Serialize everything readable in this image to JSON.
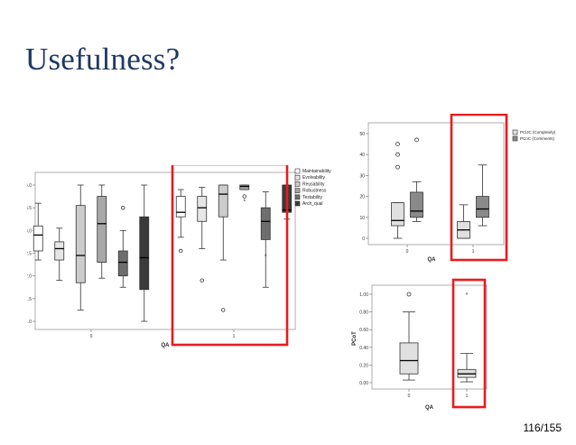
{
  "slide": {
    "title": "Usefulness?",
    "page_number": "116/155"
  },
  "chart_data": [
    {
      "type": "box",
      "xlabel": "QA",
      "ylabel": "",
      "categories": [
        "0",
        "1"
      ],
      "ylim": [
        1.0,
        4.0
      ],
      "yticks": [
        "1.0",
        "1.5",
        "2.0",
        "2.5",
        "3.0",
        "3.5",
        "4.0"
      ],
      "series": [
        {
          "name": "Maintainability",
          "color": "#ffffff",
          "boxes": [
            {
              "min": 2.35,
              "q1": 2.55,
              "median": 2.9,
              "q3": 3.1,
              "max": 3.6,
              "outliers": []
            },
            {
              "min": 2.85,
              "q1": 3.3,
              "median": 3.4,
              "q3": 3.75,
              "max": 3.9,
              "outliers": [
                {
                  "y": 2.55,
                  "marker": "o"
                }
              ]
            }
          ]
        },
        {
          "name": "Evolvability",
          "color": "#e6e6e6",
          "boxes": [
            {
              "min": 1.9,
              "q1": 2.35,
              "median": 2.6,
              "q3": 2.75,
              "max": 3.05,
              "outliers": []
            },
            {
              "min": 2.6,
              "q1": 3.2,
              "median": 3.5,
              "q3": 3.75,
              "max": 3.95,
              "outliers": [
                {
                  "y": 1.9,
                  "marker": "o"
                }
              ]
            }
          ]
        },
        {
          "name": "Reusability",
          "color": "#cccccc",
          "boxes": [
            {
              "min": 1.25,
              "q1": 1.85,
              "median": 2.45,
              "q3": 3.55,
              "max": 4.0,
              "outliers": []
            },
            {
              "min": 2.35,
              "q1": 3.3,
              "median": 3.8,
              "q3": 4.0,
              "max": 4.0,
              "outliers": [
                {
                  "y": 1.25,
                  "marker": "o"
                }
              ]
            }
          ]
        },
        {
          "name": "Robustness",
          "color": "#a8a8a8",
          "boxes": [
            {
              "min": 1.95,
              "q1": 2.3,
              "median": 3.15,
              "q3": 3.75,
              "max": 4.0,
              "outliers": []
            },
            {
              "min": 3.9,
              "q1": 3.9,
              "median": 3.97,
              "q3": 4.0,
              "max": 4.0,
              "outliers": [
                {
                  "y": 3.75,
                  "marker": "o"
                },
                {
                  "y": 3.65,
                  "marker": "*"
                }
              ]
            }
          ]
        },
        {
          "name": "Testability",
          "color": "#6e6e6e",
          "boxes": [
            {
              "min": 1.75,
              "q1": 2.0,
              "median": 2.3,
              "q3": 2.55,
              "max": 3.0,
              "outliers": [
                {
                  "y": 3.5,
                  "marker": "o"
                }
              ]
            },
            {
              "min": 1.75,
              "q1": 2.8,
              "median": 3.2,
              "q3": 3.5,
              "max": 3.85,
              "outliers": [
                {
                  "y": 2.45,
                  "marker": "*"
                }
              ]
            }
          ]
        },
        {
          "name": "Arch_qual",
          "color": "#3a3a3a",
          "boxes": [
            {
              "min": 1.0,
              "q1": 1.7,
              "median": 2.4,
              "q3": 3.3,
              "max": 4.0,
              "outliers": []
            },
            {
              "min": 3.25,
              "q1": 3.4,
              "median": 3.45,
              "q3": 4.0,
              "max": 4.0,
              "outliers": [
                {
                  "y": 1.0,
                  "marker": "*"
                }
              ]
            }
          ]
        }
      ]
    },
    {
      "type": "box",
      "xlabel": "QA",
      "ylabel": "",
      "categories": [
        "0",
        "1"
      ],
      "ylim": [
        0,
        50
      ],
      "yticks": [
        "0",
        "10",
        "20",
        "30",
        "40",
        "50"
      ],
      "series": [
        {
          "name": "PCiJC (Complexity)",
          "color": "#e0e0e0",
          "boxes": [
            {
              "min": 0,
              "q1": 6,
              "median": 8.5,
              "q3": 17,
              "max": 17,
              "outliers": [
                {
                  "y": 34,
                  "marker": "o"
                },
                {
                  "y": 40,
                  "marker": "o"
                },
                {
                  "y": 45,
                  "marker": "o"
                }
              ]
            },
            {
              "min": 0,
              "q1": 0,
              "median": 4,
              "q3": 8,
              "max": 16,
              "outliers": []
            }
          ]
        },
        {
          "name": "PCoC (Comments)",
          "color": "#8a8a8a",
          "boxes": [
            {
              "min": 8,
              "q1": 10,
              "median": 13,
              "q3": 22,
              "max": 27,
              "outliers": [
                {
                  "y": 47,
                  "marker": "o"
                }
              ]
            },
            {
              "min": 6,
              "q1": 10,
              "median": 14,
              "q3": 20,
              "max": 35,
              "outliers": []
            }
          ]
        }
      ]
    },
    {
      "type": "box",
      "xlabel": "QA",
      "ylabel": "PCoT",
      "categories": [
        "0",
        "1"
      ],
      "ylim": [
        0.0,
        1.0
      ],
      "yticks": [
        "0.00",
        "0.20",
        "0.40",
        "0.60",
        "0.80",
        "1.00"
      ],
      "series": [
        {
          "name": "PCoT",
          "color": "#e0e0e0",
          "boxes": [
            {
              "min": 0.03,
              "q1": 0.1,
              "median": 0.25,
              "q3": 0.45,
              "max": 0.8,
              "outliers": [
                {
                  "y": 1.0,
                  "marker": "o"
                }
              ]
            },
            {
              "min": 0.01,
              "q1": 0.06,
              "median": 0.1,
              "q3": 0.15,
              "max": 0.33,
              "outliers": [
                {
                  "y": 1.0,
                  "marker": "*"
                }
              ]
            }
          ]
        }
      ]
    }
  ],
  "highlight_color": "#e81c1c"
}
